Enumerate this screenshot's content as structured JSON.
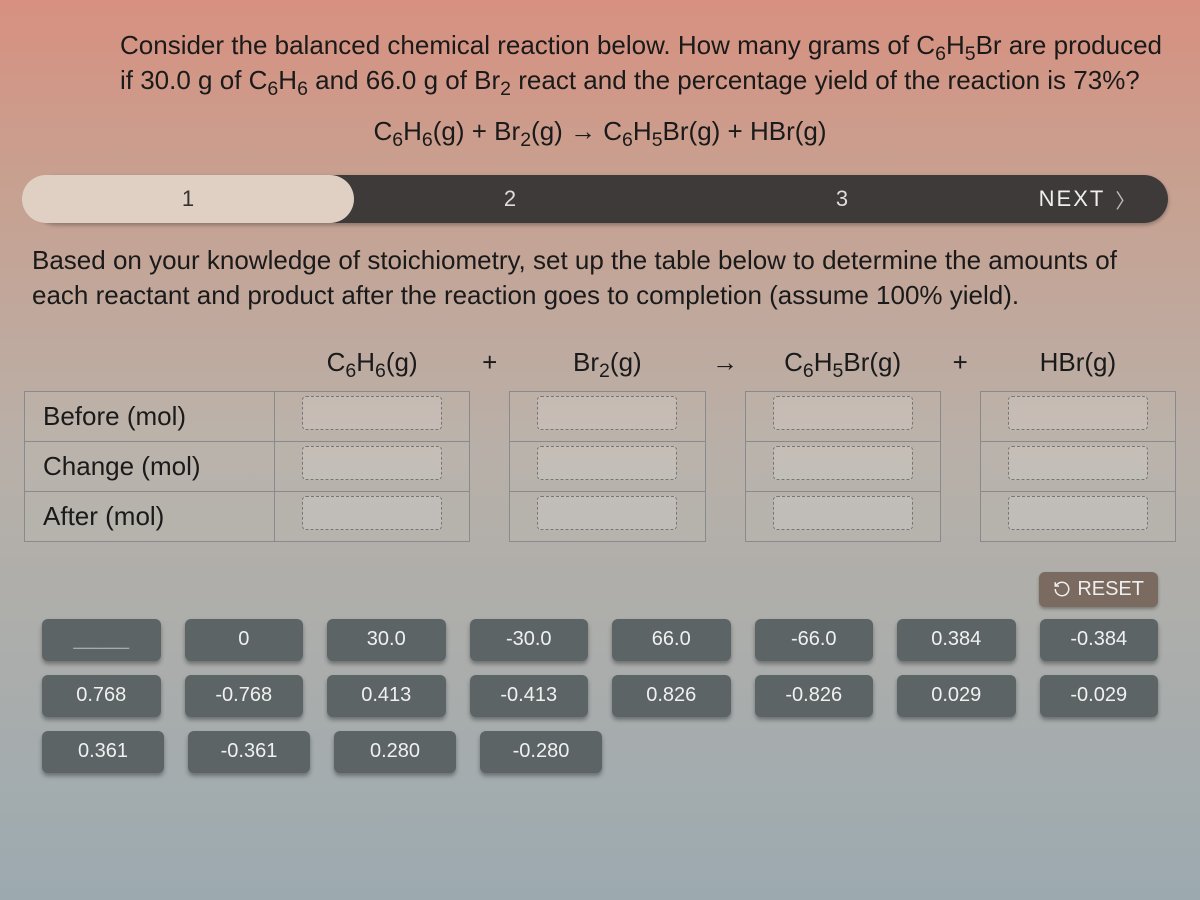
{
  "question_parts": {
    "a": "Consider the balanced chemical reaction below. How many grams of C",
    "b": "Br are produced if 30.0 g of C",
    "c": " and 66.0 g of Br",
    "d": " react and the percentage yield of the reaction is 73%?"
  },
  "reaction": {
    "p1": "C",
    "p1s1": "6",
    "p1b": "H",
    "p1s2": "6",
    "state1": "(g) + Br",
    "s_br": "2",
    "state2": "(g) → C",
    "p3s1": "6",
    "p3b": "H",
    "p3s2": "5",
    "state3": "Br(g) + HBr(g)"
  },
  "steps": {
    "s1": "1",
    "s2": "2",
    "s3": "3",
    "next": "NEXT"
  },
  "instruction": "Based on your knowledge of stoichiometry, set up the table below to determine the amounts of each reactant and product after the reaction goes to completion (assume 100% yield).",
  "table": {
    "rows": {
      "r1": "Before (mol)",
      "r2": "Change (mol)",
      "r3": "After (mol)"
    },
    "ops": {
      "plus": "+",
      "arrow": "→"
    }
  },
  "reset": "RESET",
  "tiles": {
    "row1": [
      "_____",
      "0",
      "30.0",
      "-30.0",
      "66.0",
      "-66.0",
      "0.384",
      "-0.384"
    ],
    "row2": [
      "0.768",
      "-0.768",
      "0.413",
      "-0.413",
      "0.826",
      "-0.826",
      "0.029",
      "-0.029"
    ],
    "row3": [
      "0.361",
      "-0.361",
      "0.280",
      "-0.280"
    ]
  },
  "colors": {
    "stepbar_bg": "#3e3a3a",
    "active_bg": "#e0d0c4",
    "tile_bg": "#5c6466",
    "tile_fg": "#f0f0f0",
    "reset_bg": "#7a6a60"
  }
}
